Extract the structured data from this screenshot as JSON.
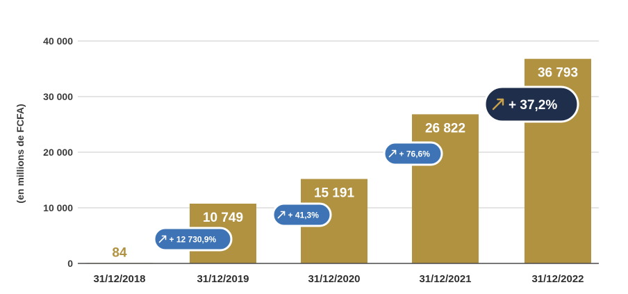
{
  "chart_data": {
    "type": "bar",
    "ylabel": "(en millions de FCFA)",
    "ylim": [
      0,
      40000
    ],
    "yticks": [
      0,
      10000,
      20000,
      30000,
      40000
    ],
    "ytick_labels": [
      "0",
      "10 000",
      "20 000",
      "30 000",
      "40 000"
    ],
    "grid": true,
    "categories": [
      "31/12/2018",
      "31/12/2019",
      "31/12/2020",
      "31/12/2021",
      "31/12/2022"
    ],
    "values": [
      84,
      10749,
      15191,
      26822,
      36793
    ],
    "value_labels": [
      "84",
      "10 749",
      "15 191",
      "26 822",
      "36 793"
    ],
    "growth_labels": [
      "+ 12 730,9%",
      "+ 41,3%",
      "+ 76,6%",
      "+ 37,2%"
    ],
    "growth_icon": "arrow-up-right-icon",
    "colors": {
      "bar": "#b09240",
      "grid": "#c8c8c8",
      "axis": "#4a4a4a",
      "pill_blue": "#3e74b5",
      "pill_navy": "#1f2e4a",
      "pill_arrow_gold": "#c9a24a",
      "label_on_bar": "#ffffff",
      "label_above_bar": "#b09240"
    }
  }
}
